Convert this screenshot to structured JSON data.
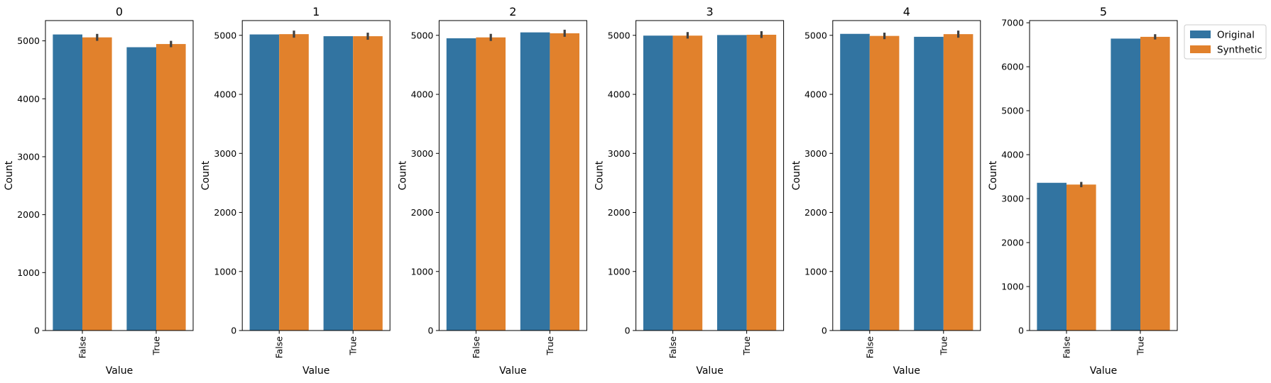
{
  "colors": {
    "original": "#3274a1",
    "synthetic": "#e1812c",
    "errorbar": "#404040",
    "axis": "#000000"
  },
  "legend": {
    "items": [
      {
        "label": "Original",
        "color": "#3274a1"
      },
      {
        "label": "Synthetic",
        "color": "#e1812c"
      }
    ],
    "placement": "outside upper right"
  },
  "chart_data": [
    {
      "type": "bar",
      "title": "0",
      "xlabel": "Value",
      "ylabel": "Count",
      "categories": [
        "False",
        "True"
      ],
      "ylim": [
        0,
        5350
      ],
      "yticks": [
        0,
        1000,
        2000,
        3000,
        4000,
        5000
      ],
      "series": [
        {
          "name": "Original",
          "values": [
            5110,
            4890
          ]
        },
        {
          "name": "Synthetic",
          "values": [
            5060,
            4945
          ],
          "error": [
            [
              5000,
              5120
            ],
            [
              4890,
              5000
            ]
          ]
        }
      ]
    },
    {
      "type": "bar",
      "title": "1",
      "xlabel": "Value",
      "ylabel": "Count",
      "categories": [
        "False",
        "True"
      ],
      "ylim": [
        0,
        5250
      ],
      "yticks": [
        0,
        1000,
        2000,
        3000,
        4000,
        5000
      ],
      "series": [
        {
          "name": "Original",
          "values": [
            5015,
            4985
          ]
        },
        {
          "name": "Synthetic",
          "values": [
            5020,
            4985
          ],
          "error": [
            [
              4960,
              5080
            ],
            [
              4925,
              5045
            ]
          ]
        }
      ]
    },
    {
      "type": "bar",
      "title": "2",
      "xlabel": "Value",
      "ylabel": "Count",
      "categories": [
        "False",
        "True"
      ],
      "ylim": [
        0,
        5250
      ],
      "yticks": [
        0,
        1000,
        2000,
        3000,
        4000,
        5000
      ],
      "series": [
        {
          "name": "Original",
          "values": [
            4950,
            5050
          ]
        },
        {
          "name": "Synthetic",
          "values": [
            4965,
            5035
          ],
          "error": [
            [
              4905,
              5025
            ],
            [
              4975,
              5095
            ]
          ]
        }
      ]
    },
    {
      "type": "bar",
      "title": "3",
      "xlabel": "Value",
      "ylabel": "Count",
      "categories": [
        "False",
        "True"
      ],
      "ylim": [
        0,
        5250
      ],
      "yticks": [
        0,
        1000,
        2000,
        3000,
        4000,
        5000
      ],
      "series": [
        {
          "name": "Original",
          "values": [
            4995,
            5005
          ]
        },
        {
          "name": "Synthetic",
          "values": [
            4995,
            5010
          ],
          "error": [
            [
              4945,
              5055
            ],
            [
              4955,
              5070
            ]
          ]
        }
      ]
    },
    {
      "type": "bar",
      "title": "4",
      "xlabel": "Value",
      "ylabel": "Count",
      "categories": [
        "False",
        "True"
      ],
      "ylim": [
        0,
        5250
      ],
      "yticks": [
        0,
        1000,
        2000,
        3000,
        4000,
        5000
      ],
      "series": [
        {
          "name": "Original",
          "values": [
            5025,
            4975
          ]
        },
        {
          "name": "Synthetic",
          "values": [
            4990,
            5020
          ],
          "error": [
            [
              4935,
              5045
            ],
            [
              4960,
              5080
            ]
          ]
        }
      ]
    },
    {
      "type": "bar",
      "title": "5",
      "xlabel": "Value",
      "ylabel": "Count",
      "categories": [
        "False",
        "True"
      ],
      "ylim": [
        0,
        7050
      ],
      "yticks": [
        0,
        1000,
        2000,
        3000,
        4000,
        5000,
        6000,
        7000
      ],
      "series": [
        {
          "name": "Original",
          "values": [
            3360,
            6640
          ]
        },
        {
          "name": "Synthetic",
          "values": [
            3320,
            6680
          ],
          "error": [
            [
              3260,
              3380
            ],
            [
              6620,
              6740
            ]
          ]
        }
      ]
    }
  ]
}
